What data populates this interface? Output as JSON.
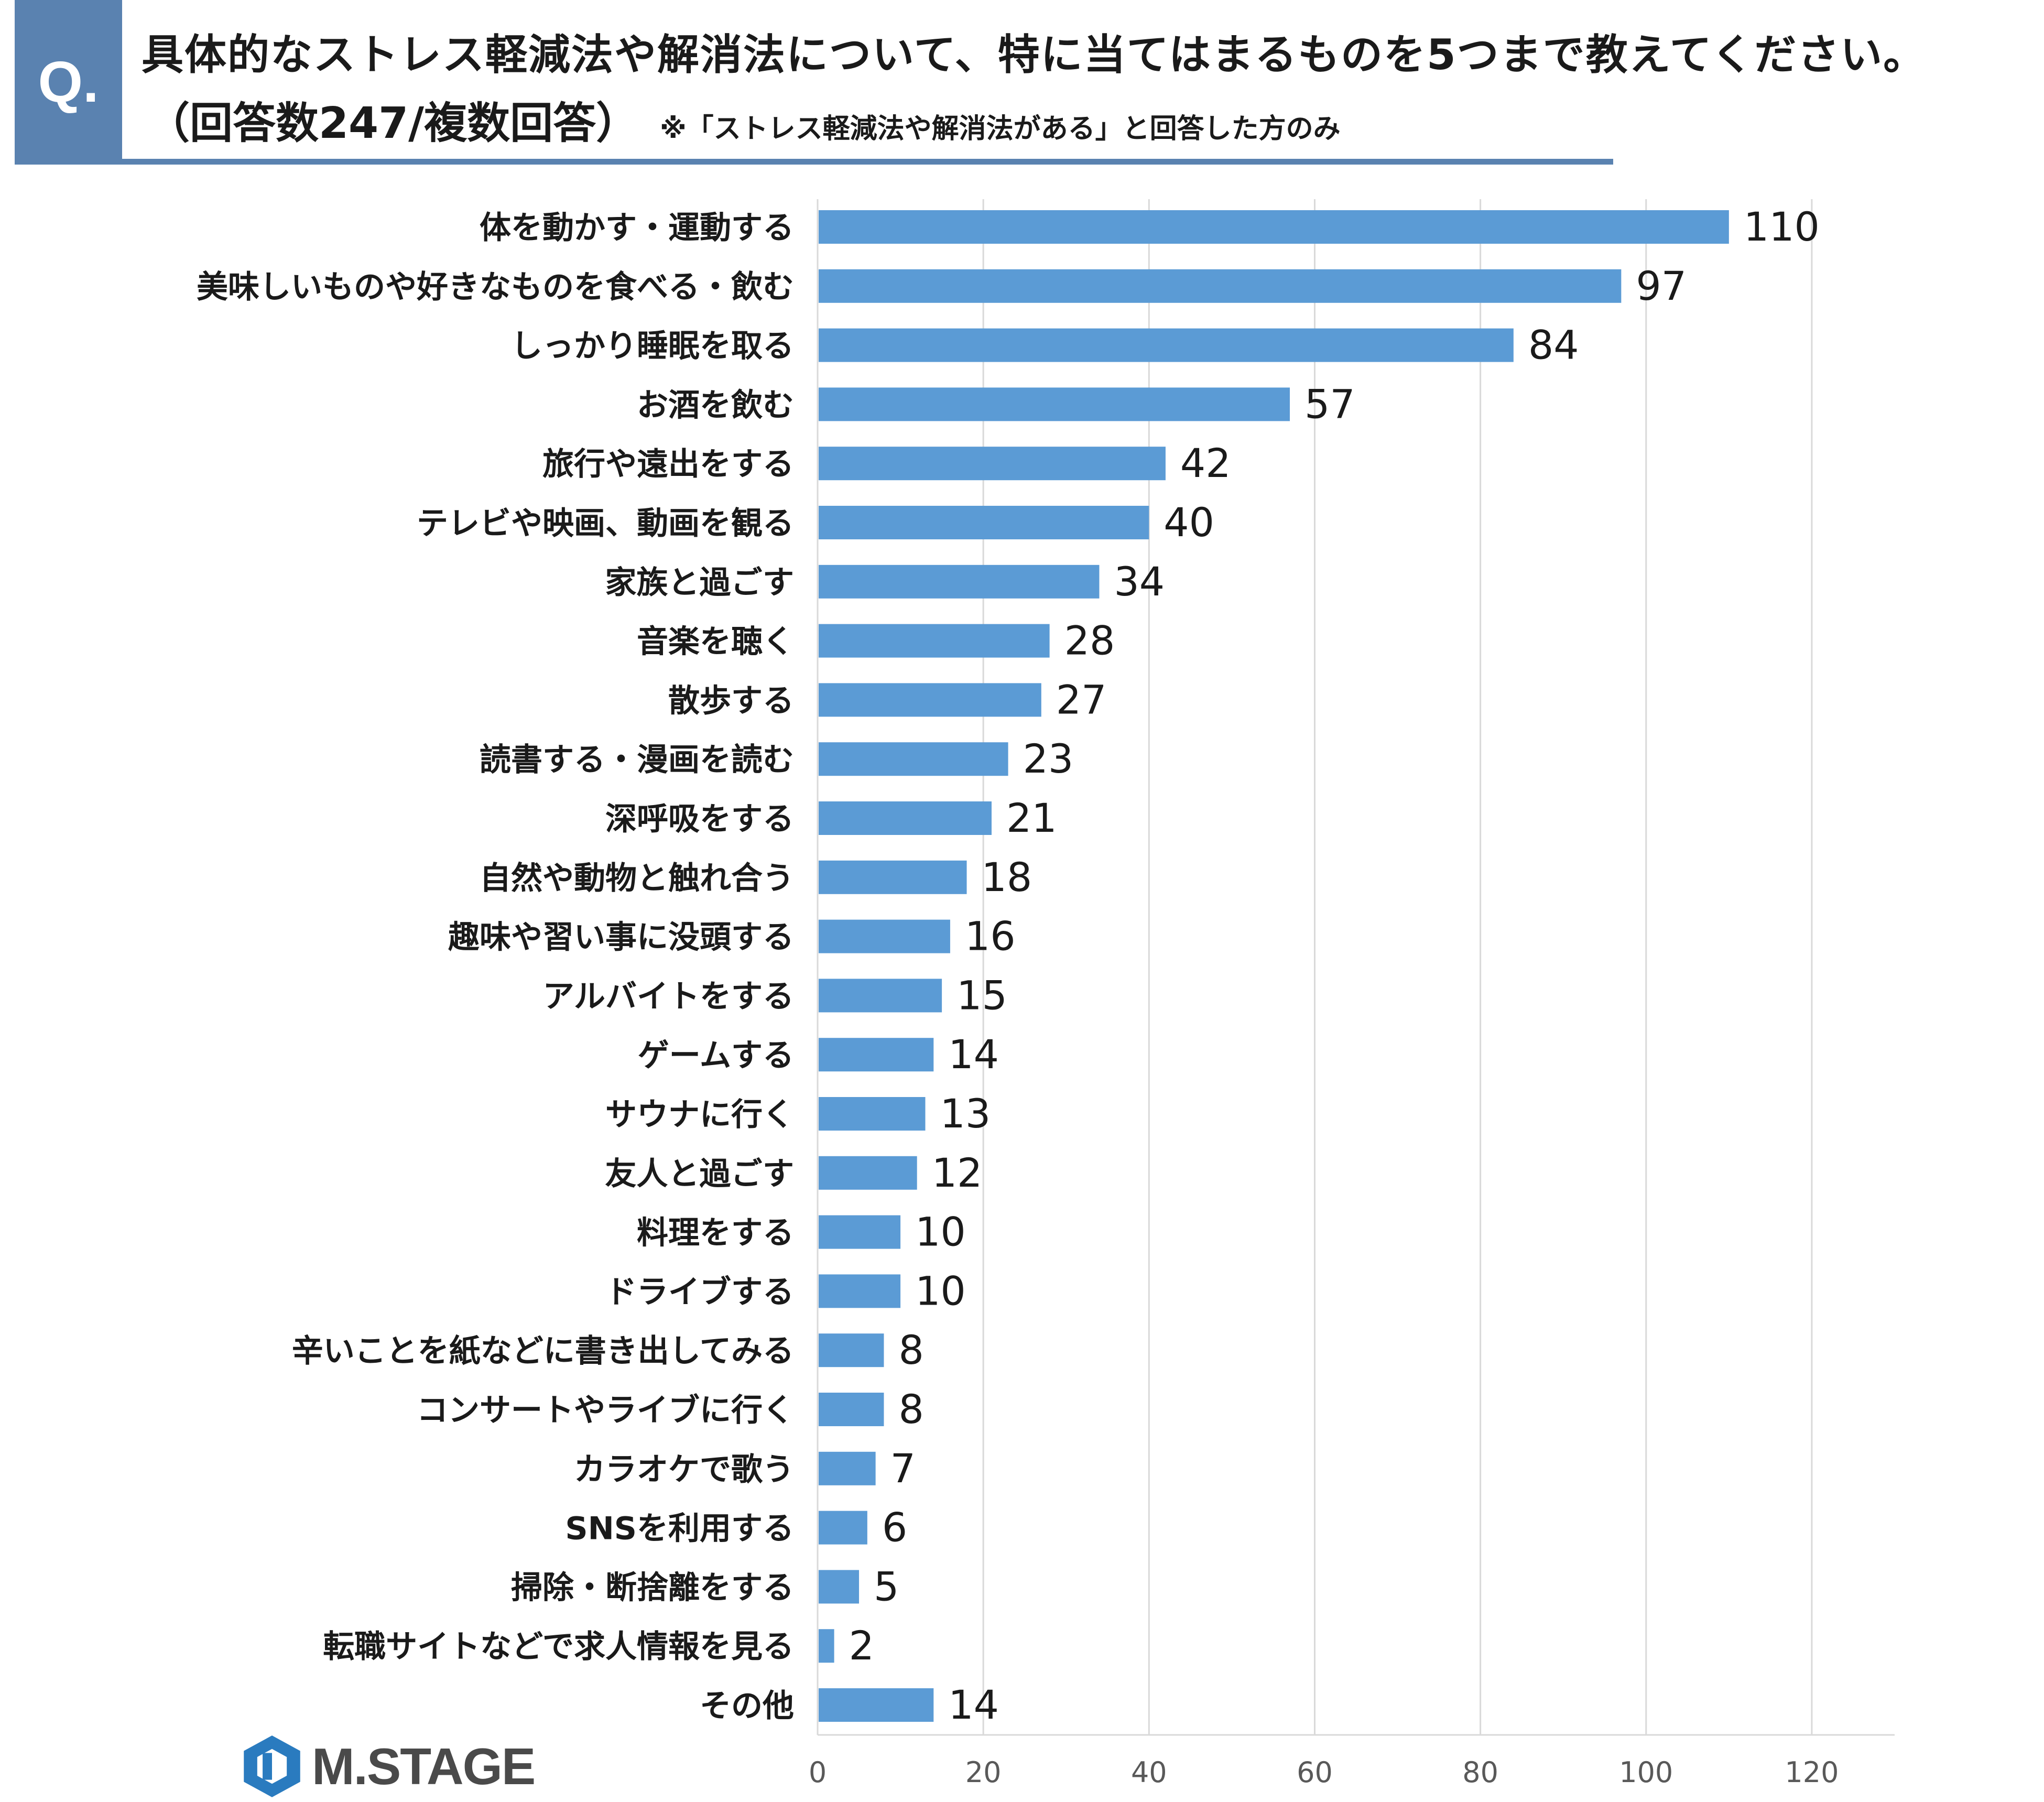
{
  "question": {
    "badge": "Q.",
    "title": "具体的なストレス軽減法や解消法について、特に当てはまるものを5つまで教えてください。",
    "subtitle": "（回答数247/複数回答）",
    "note": "※「ストレス軽減法や解消法がある」と回答した方のみ"
  },
  "colors": {
    "accent": "#5a82b0",
    "bar": "#5b9bd5",
    "grid": "#d9d9d9",
    "axis_text": "#595959"
  },
  "logo": {
    "text": "M.STAGE",
    "icon": "hexagon-logo-icon"
  },
  "chart_data": {
    "type": "bar",
    "orientation": "horizontal",
    "categories": [
      "体を動かす・運動する",
      "美味しいものや好きなものを食べる・飲む",
      "しっかり睡眠を取る",
      "お酒を飲む",
      "旅行や遠出をする",
      "テレビや映画、動画を観る",
      "家族と過ごす",
      "音楽を聴く",
      "散歩する",
      "読書する・漫画を読む",
      "深呼吸をする",
      "自然や動物と触れ合う",
      "趣味や習い事に没頭する",
      "アルバイトをする",
      "ゲームする",
      "サウナに行く",
      "友人と過ごす",
      "料理をする",
      "ドライブする",
      "辛いことを紙などに書き出してみる",
      "コンサートやライブに行く",
      "カラオケで歌う",
      "SNSを利用する",
      "掃除・断捨離をする",
      "転職サイトなどで求人情報を見る",
      "その他"
    ],
    "values": [
      110,
      97,
      84,
      57,
      42,
      40,
      34,
      28,
      27,
      23,
      21,
      18,
      16,
      15,
      14,
      13,
      12,
      10,
      10,
      8,
      8,
      7,
      6,
      5,
      2,
      14
    ],
    "xlim": [
      0,
      130
    ],
    "xticks": [
      0,
      20,
      40,
      60,
      80,
      100,
      120
    ],
    "grid": true,
    "data_labels": true
  }
}
